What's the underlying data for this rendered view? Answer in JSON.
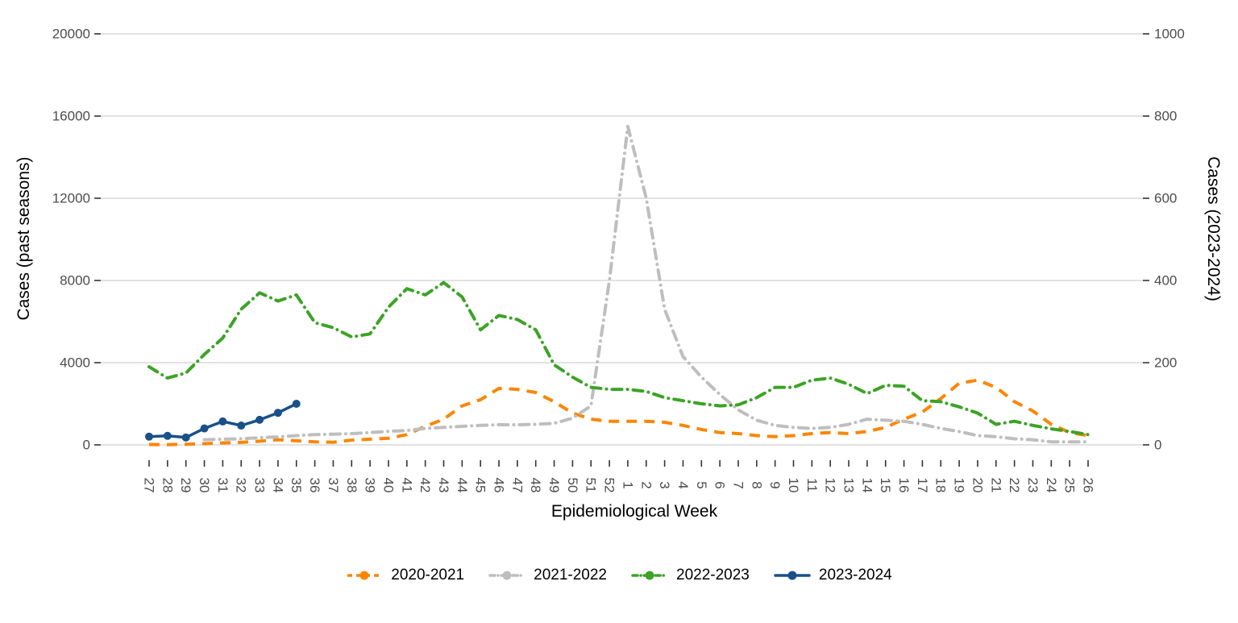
{
  "chart_data": {
    "type": "line",
    "title": "",
    "x_label": "Epidemiological Week",
    "y_left_label": "Cases (past seasons)",
    "y_right_label": "Cases (2023-2024)",
    "x_categories": [
      "27",
      "28",
      "29",
      "30",
      "31",
      "32",
      "33",
      "34",
      "35",
      "36",
      "37",
      "38",
      "39",
      "40",
      "41",
      "42",
      "43",
      "44",
      "45",
      "46",
      "47",
      "48",
      "49",
      "50",
      "51",
      "52",
      "1",
      "2",
      "3",
      "4",
      "5",
      "6",
      "7",
      "8",
      "9",
      "10",
      "11",
      "12",
      "13",
      "14",
      "15",
      "16",
      "17",
      "18",
      "19",
      "20",
      "21",
      "22",
      "23",
      "24",
      "25",
      "26"
    ],
    "y_left": {
      "ticks": [
        0,
        4000,
        8000,
        12000,
        16000,
        20000
      ],
      "range": [
        0,
        20000
      ]
    },
    "y_right": {
      "ticks": [
        0,
        200,
        400,
        600,
        800,
        1000
      ],
      "range": [
        0,
        1000
      ]
    },
    "grid": "horizontal-major-only",
    "legend_position": "bottom",
    "grid_color": "#D9D9D9",
    "tick_color": "#333333",
    "label_color": "#4D4D4D",
    "title_color": "#000000",
    "series": [
      {
        "name": "2020-2021",
        "color": "#FB8604",
        "axis": "left",
        "line_style": "dashed",
        "markers": false,
        "values": [
          20,
          10,
          30,
          60,
          100,
          120,
          180,
          250,
          200,
          150,
          130,
          230,
          280,
          320,
          500,
          900,
          1250,
          1900,
          2200,
          2750,
          2700,
          2550,
          2100,
          1550,
          1250,
          1150,
          1150,
          1150,
          1100,
          950,
          750,
          600,
          550,
          450,
          400,
          450,
          550,
          600,
          550,
          650,
          850,
          1250,
          1600,
          2250,
          3000,
          3150,
          2800,
          2100,
          1650,
          1000,
          600,
          450
        ]
      },
      {
        "name": "2021-2022",
        "color": "#BEBEBE",
        "axis": "left",
        "line_style": "dashdot",
        "markers": false,
        "values": [
          null,
          null,
          null,
          250,
          280,
          300,
          350,
          390,
          450,
          500,
          520,
          550,
          600,
          660,
          700,
          800,
          850,
          900,
          950,
          980,
          980,
          1000,
          1050,
          1300,
          1900,
          8000,
          15500,
          12000,
          6600,
          4300,
          3300,
          2450,
          1700,
          1200,
          950,
          850,
          800,
          850,
          1000,
          1250,
          1200,
          1150,
          1000,
          800,
          650,
          450,
          400,
          300,
          250,
          150,
          150,
          150
        ]
      },
      {
        "name": "2022-2023",
        "color": "#3CA326",
        "axis": "left",
        "line_style": "dashdot",
        "markers": false,
        "values": [
          3800,
          3250,
          3500,
          4400,
          5200,
          6600,
          7400,
          7000,
          7300,
          5950,
          5700,
          5250,
          5400,
          6700,
          7600,
          7300,
          7900,
          7200,
          5600,
          6300,
          6100,
          5600,
          3900,
          3300,
          2800,
          2700,
          2700,
          2600,
          2300,
          2150,
          2000,
          1900,
          1950,
          2300,
          2800,
          2800,
          3150,
          3250,
          2950,
          2500,
          2900,
          2850,
          2150,
          2100,
          1850,
          1550,
          1000,
          1150,
          950,
          780,
          650,
          500
        ]
      },
      {
        "name": "2023-2024",
        "color": "#1A5088",
        "axis": "right",
        "line_style": "solid",
        "markers": true,
        "values": [
          20,
          22,
          18,
          40,
          57,
          47,
          61,
          78,
          100,
          null,
          null,
          null,
          null,
          null,
          null,
          null,
          null,
          null,
          null,
          null,
          null,
          null,
          null,
          null,
          null,
          null,
          null,
          null,
          null,
          null,
          null,
          null,
          null,
          null,
          null,
          null,
          null,
          null,
          null,
          null,
          null,
          null,
          null,
          null,
          null,
          null,
          null,
          null,
          null,
          null,
          null,
          null
        ]
      }
    ]
  }
}
